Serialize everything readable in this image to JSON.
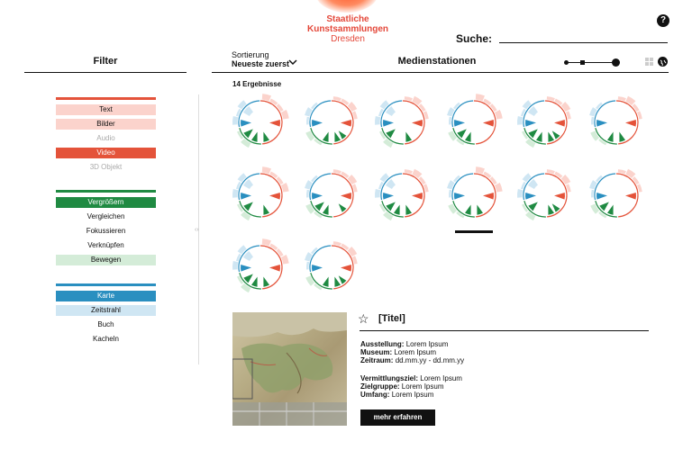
{
  "logo": {
    "line1": "Staatliche",
    "line2": "Kunstsammlungen",
    "line3": "Dresden"
  },
  "header": {
    "help_icon": "question-circle-icon",
    "help_symbol": "?",
    "search_label": "Suche:",
    "search_value": ""
  },
  "filter": {
    "title": "Filter",
    "groups": [
      {
        "accent": "#e4533a",
        "items": [
          {
            "label": "Text",
            "state": "light"
          },
          {
            "label": "Bilder",
            "state": "light"
          },
          {
            "label": "Audio",
            "state": "disabled"
          },
          {
            "label": "Video",
            "state": "active"
          },
          {
            "label": "3D Objekt",
            "state": "disabled"
          }
        ]
      },
      {
        "accent": "#1f8a42",
        "items": [
          {
            "label": "Vergrößern",
            "state": "active"
          },
          {
            "label": "Vergleichen",
            "state": "plain"
          },
          {
            "label": "Fokussieren",
            "state": "plain"
          },
          {
            "label": "Verknüpfen",
            "state": "plain"
          },
          {
            "label": "Bewegen",
            "state": "light"
          }
        ]
      },
      {
        "accent": "#2a8fc0",
        "items": [
          {
            "label": "Karte",
            "state": "active"
          },
          {
            "label": "Zeitstrahl",
            "state": "light"
          },
          {
            "label": "Buch",
            "state": "plain"
          },
          {
            "label": "Kacheln",
            "state": "plain"
          }
        ]
      }
    ]
  },
  "main": {
    "sort_label": "Sortierung",
    "sort_value": "Neueste zuerst",
    "title": "Medienstationen",
    "results": "14 Ergebnisse",
    "view_icons": [
      "zoom-slider-icon",
      "grid-view-icon",
      "globe-icon"
    ],
    "stations_count": 14,
    "selected_index": 9
  },
  "details": {
    "title": "[Titel]",
    "star_icon": "star-outline-icon",
    "ausstellung_label": "Ausstellung:",
    "ausstellung": "Lorem Ipsum",
    "museum_label": "Museum:",
    "museum": "Lorem Ipsum",
    "zeitraum_label": "Zeitraum:",
    "zeitraum": "dd.mm.yy - dd.mm.yy",
    "ziel_label": "Vermittlungsziel:",
    "ziel": "Lorem Ipsum",
    "gruppe_label": "Zielgruppe:",
    "gruppe": "Lorem Ipsum",
    "umfang_label": "Umfang:",
    "umfang": "Lorem Ipsum",
    "button": "mehr erfahren"
  },
  "colors": {
    "red": "#e4533a",
    "red_light": "#fbd3cc",
    "green": "#1f8a42",
    "green_light": "#d4ecd8",
    "blue": "#2a8fc0",
    "blue_light": "#cfe6f3"
  }
}
